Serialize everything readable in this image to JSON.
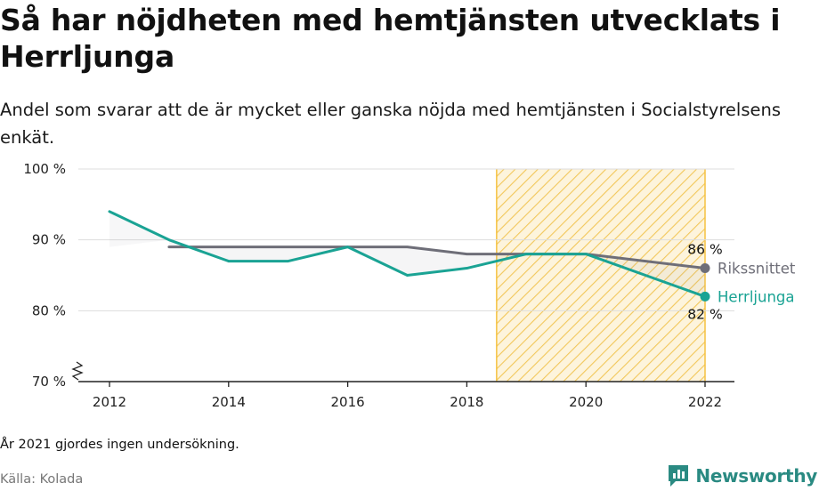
{
  "title": "Så har nöjdheten med hemtjänsten utvecklats i Herrljunga",
  "subtitle": "Andel som svarar att de är mycket eller ganska nöjda med hemtjänsten i Socialstyrelsens enkät.",
  "note": "År 2021 gjordes ingen undersökning.",
  "source": "Källa: Kolada",
  "brand": "Newsworthy",
  "colors": {
    "herrljunga": "#1aa394",
    "riket": "#6e6e78",
    "highlight": "#f5c242",
    "grid": "#dddddd"
  },
  "chart_data": {
    "type": "line",
    "x_ticks": [
      "2012",
      "2014",
      "2016",
      "2018",
      "2020",
      "2022"
    ],
    "y_ticks": [
      "70 %",
      "80 %",
      "90 %",
      "100 %"
    ],
    "ylim": [
      70,
      100
    ],
    "xlim": [
      2011.5,
      2022.5
    ],
    "highlight_range": [
      2018.5,
      2022
    ],
    "series": [
      {
        "name": "Herrljunga",
        "color": "#1aa394",
        "x": [
          2012,
          2013,
          2014,
          2015,
          2016,
          2017,
          2018,
          2019,
          2020,
          2022
        ],
        "values": [
          94,
          90,
          87,
          87,
          89,
          85,
          86,
          88,
          88,
          82
        ],
        "end_label": "82 %"
      },
      {
        "name": "Rikssnittet",
        "color": "#6e6e78",
        "x": [
          2013,
          2014,
          2015,
          2016,
          2017,
          2018,
          2019,
          2020,
          2022
        ],
        "values": [
          89,
          89,
          89,
          89,
          89,
          88,
          88,
          88,
          86
        ],
        "end_label": "86 %"
      }
    ]
  }
}
